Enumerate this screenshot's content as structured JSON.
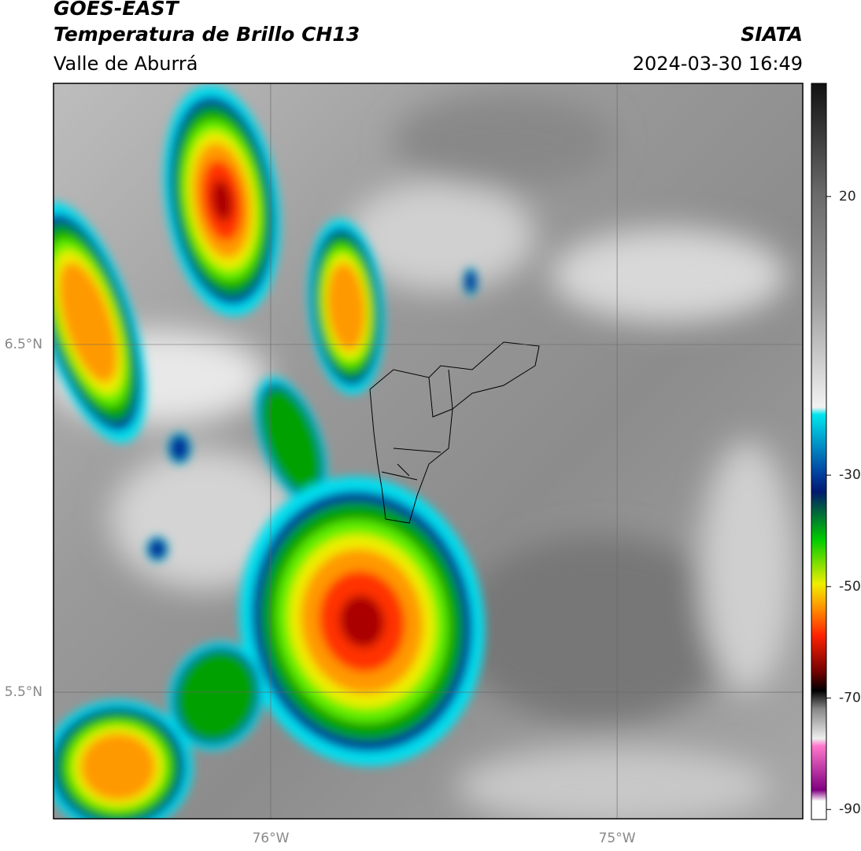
{
  "header": {
    "title": "GOES-EAST",
    "subtitle": "Temperatura de Brillo CH13",
    "region": "Valle de Aburrá",
    "source": "SIATA",
    "datetime": "2024-03-30 16:49"
  },
  "map": {
    "lat_range": [
      5.136,
      7.251
    ],
    "lon_range": [
      -76.627,
      -74.464
    ],
    "lat_ticks": [
      {
        "value": 6.5,
        "label": "6.5°N"
      },
      {
        "value": 5.5,
        "label": "5.5°N"
      }
    ],
    "lon_ticks": [
      {
        "value": -76,
        "label": "76°W"
      },
      {
        "value": -75,
        "label": "75°W"
      }
    ]
  },
  "colorbar": {
    "range": [
      40.3,
      -91.8
    ],
    "ticks": [
      20,
      -30,
      -50,
      -70,
      -90
    ]
  }
}
